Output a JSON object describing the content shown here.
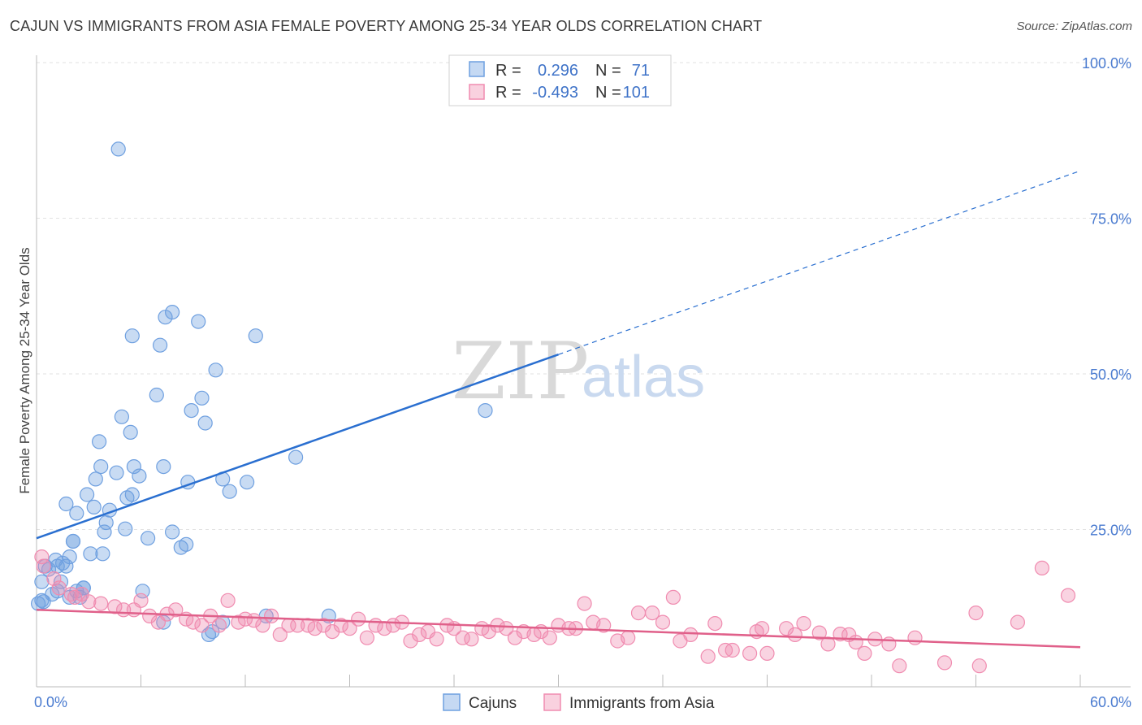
{
  "title": "CAJUN VS IMMIGRANTS FROM ASIA FEMALE POVERTY AMONG 25-34 YEAR OLDS CORRELATION CHART",
  "source": "Source: ZipAtlas.com",
  "watermark": {
    "part1": "ZIP",
    "part2": "atlas"
  },
  "colors": {
    "cajun": "#6fa0e0",
    "asia": "#f08cb0",
    "cajun_line": "#2a6fd0",
    "asia_line": "#e0608a",
    "tick": "#4a7bd0"
  },
  "legend": {
    "cajun": {
      "r_label": "R =",
      "r_value": "0.296",
      "n_label": "N =",
      "n_value": "71"
    },
    "asia": {
      "r_label": "R =",
      "r_value": "-0.493",
      "n_label": "N =",
      "n_value": "101"
    }
  },
  "bottom_legend": [
    "Cajuns",
    "Immigrants from Asia"
  ],
  "chart_data": {
    "type": "scatter",
    "ylabel": "Female Poverty Among 25-34 Year Olds",
    "xlabel": "",
    "xlim": [
      0,
      60
    ],
    "ylim": [
      0,
      105
    ],
    "x_tick_labels": [
      {
        "value": 0,
        "label": "0.0%"
      },
      {
        "value": 60,
        "label": "60.0%"
      }
    ],
    "y_tick_labels": [
      {
        "value": 25,
        "label": "25.0%"
      },
      {
        "value": 50,
        "label": "50.0%"
      },
      {
        "value": 75,
        "label": "75.0%"
      },
      {
        "value": 100,
        "label": "100.0%"
      }
    ],
    "grid": true,
    "series": [
      {
        "name": "Cajuns",
        "trend": {
          "x": [
            0,
            30
          ],
          "y": [
            24,
            53.5
          ],
          "dashed_extension_to": [
            60,
            83
          ]
        },
        "points": [
          [
            4.7,
            86.5
          ],
          [
            5.5,
            56.5
          ],
          [
            7.4,
            59.5
          ],
          [
            7.8,
            60.3
          ],
          [
            9.3,
            58.8
          ],
          [
            12.6,
            56.5
          ],
          [
            7.1,
            55
          ],
          [
            10.3,
            51
          ],
          [
            6.9,
            47
          ],
          [
            9.5,
            46.5
          ],
          [
            8.9,
            44.5
          ],
          [
            4.9,
            43.5
          ],
          [
            5.4,
            41
          ],
          [
            9.7,
            42.5
          ],
          [
            3.6,
            39.5
          ],
          [
            14.9,
            37
          ],
          [
            3.7,
            35.5
          ],
          [
            5.6,
            35.5
          ],
          [
            7.3,
            35.5
          ],
          [
            4.6,
            34.5
          ],
          [
            5.9,
            34
          ],
          [
            3.4,
            33.5
          ],
          [
            8.7,
            33
          ],
          [
            10.7,
            33.5
          ],
          [
            12.1,
            33
          ],
          [
            2.9,
            31
          ],
          [
            5.5,
            31
          ],
          [
            11.1,
            31.5
          ],
          [
            1.7,
            29.5
          ],
          [
            3.3,
            29
          ],
          [
            5.2,
            30.5
          ],
          [
            2.3,
            28
          ],
          [
            4.2,
            28.5
          ],
          [
            4,
            26.5
          ],
          [
            5.1,
            25.5
          ],
          [
            7.8,
            25
          ],
          [
            6.4,
            24
          ],
          [
            2.1,
            23.5
          ],
          [
            2.1,
            23.5
          ],
          [
            3.9,
            25
          ],
          [
            8.6,
            23
          ],
          [
            8.3,
            22.5
          ],
          [
            3.1,
            21.5
          ],
          [
            3.8,
            21.5
          ],
          [
            1.9,
            21
          ],
          [
            1.1,
            20.5
          ],
          [
            1.5,
            20
          ],
          [
            0.5,
            19.5
          ],
          [
            1.2,
            19.5
          ],
          [
            0.7,
            19
          ],
          [
            1.7,
            19.5
          ],
          [
            1.4,
            17
          ],
          [
            0.3,
            17
          ],
          [
            2.7,
            16
          ],
          [
            6.1,
            15.5
          ],
          [
            2.3,
            15.5
          ],
          [
            1.2,
            15.5
          ],
          [
            0.9,
            15
          ],
          [
            2.7,
            16
          ],
          [
            1.9,
            14.5
          ],
          [
            2.5,
            14.5
          ],
          [
            0.3,
            14
          ],
          [
            0.1,
            13.5
          ],
          [
            0.4,
            13.8
          ],
          [
            13.2,
            11.5
          ],
          [
            16.8,
            11.5
          ],
          [
            7.3,
            10.5
          ],
          [
            10.7,
            10.5
          ],
          [
            10.1,
            9
          ],
          [
            9.9,
            8.5
          ],
          [
            25.8,
            44.5
          ]
        ]
      },
      {
        "name": "Immigrants from Asia",
        "trend": {
          "x": [
            0,
            60
          ],
          "y": [
            12.5,
            6.5
          ]
        },
        "points": [
          [
            0.3,
            21
          ],
          [
            0.4,
            19.5
          ],
          [
            1,
            17.5
          ],
          [
            1.3,
            16
          ],
          [
            2,
            15
          ],
          [
            2.2,
            14.5
          ],
          [
            2.6,
            15
          ],
          [
            3,
            13.8
          ],
          [
            3.7,
            13.5
          ],
          [
            4.5,
            13
          ],
          [
            5,
            12.5
          ],
          [
            5.6,
            12.5
          ],
          [
            6,
            14
          ],
          [
            6.5,
            11.5
          ],
          [
            7,
            10.5
          ],
          [
            7.5,
            11.8
          ],
          [
            8,
            12.5
          ],
          [
            8.6,
            11
          ],
          [
            9,
            10.5
          ],
          [
            9.5,
            10
          ],
          [
            10,
            11.5
          ],
          [
            10.5,
            10
          ],
          [
            11,
            14
          ],
          [
            11.6,
            10.5
          ],
          [
            12,
            11
          ],
          [
            12.5,
            10.8
          ],
          [
            13,
            10
          ],
          [
            13.5,
            11.5
          ],
          [
            14,
            8.5
          ],
          [
            14.5,
            10
          ],
          [
            15,
            10
          ],
          [
            15.6,
            10
          ],
          [
            16,
            9.5
          ],
          [
            16.5,
            10
          ],
          [
            17,
            9
          ],
          [
            17.5,
            10
          ],
          [
            18,
            9.5
          ],
          [
            18.5,
            11
          ],
          [
            19,
            8
          ],
          [
            19.5,
            10
          ],
          [
            20,
            9.5
          ],
          [
            20.5,
            10
          ],
          [
            21,
            10.5
          ],
          [
            21.5,
            7.5
          ],
          [
            22,
            8.5
          ],
          [
            22.5,
            9
          ],
          [
            23,
            7.8
          ],
          [
            23.6,
            10
          ],
          [
            24,
            9.5
          ],
          [
            24.5,
            8
          ],
          [
            25,
            7.8
          ],
          [
            25.6,
            9.5
          ],
          [
            26,
            9
          ],
          [
            26.5,
            10
          ],
          [
            27,
            9.5
          ],
          [
            27.5,
            8
          ],
          [
            28,
            9
          ],
          [
            28.6,
            8.5
          ],
          [
            29,
            9
          ],
          [
            29.5,
            8
          ],
          [
            30,
            10
          ],
          [
            30.6,
            9.5
          ],
          [
            31,
            9.5
          ],
          [
            31.5,
            13.5
          ],
          [
            32,
            10.5
          ],
          [
            32.6,
            10
          ],
          [
            33.4,
            7.5
          ],
          [
            34,
            8
          ],
          [
            34.6,
            12
          ],
          [
            35.4,
            12
          ],
          [
            36,
            10.5
          ],
          [
            36.6,
            14.5
          ],
          [
            37,
            7.5
          ],
          [
            37.6,
            8.5
          ],
          [
            38.6,
            5
          ],
          [
            39,
            10.3
          ],
          [
            39.6,
            6
          ],
          [
            40,
            6
          ],
          [
            41,
            5.5
          ],
          [
            41.4,
            9
          ],
          [
            41.7,
            9.5
          ],
          [
            42,
            5.5
          ],
          [
            43.1,
            9.5
          ],
          [
            43.6,
            8.5
          ],
          [
            44.1,
            10.3
          ],
          [
            45,
            8.8
          ],
          [
            45.5,
            7
          ],
          [
            46.2,
            8.6
          ],
          [
            46.7,
            8.5
          ],
          [
            47.1,
            7.3
          ],
          [
            47.6,
            5.5
          ],
          [
            48.2,
            7.8
          ],
          [
            49,
            7
          ],
          [
            49.6,
            3.5
          ],
          [
            50.5,
            8
          ],
          [
            52.2,
            4
          ],
          [
            54,
            12
          ],
          [
            54.2,
            3.5
          ],
          [
            56.4,
            10.5
          ],
          [
            57.8,
            19.2
          ],
          [
            59.3,
            14.8
          ]
        ]
      }
    ]
  }
}
